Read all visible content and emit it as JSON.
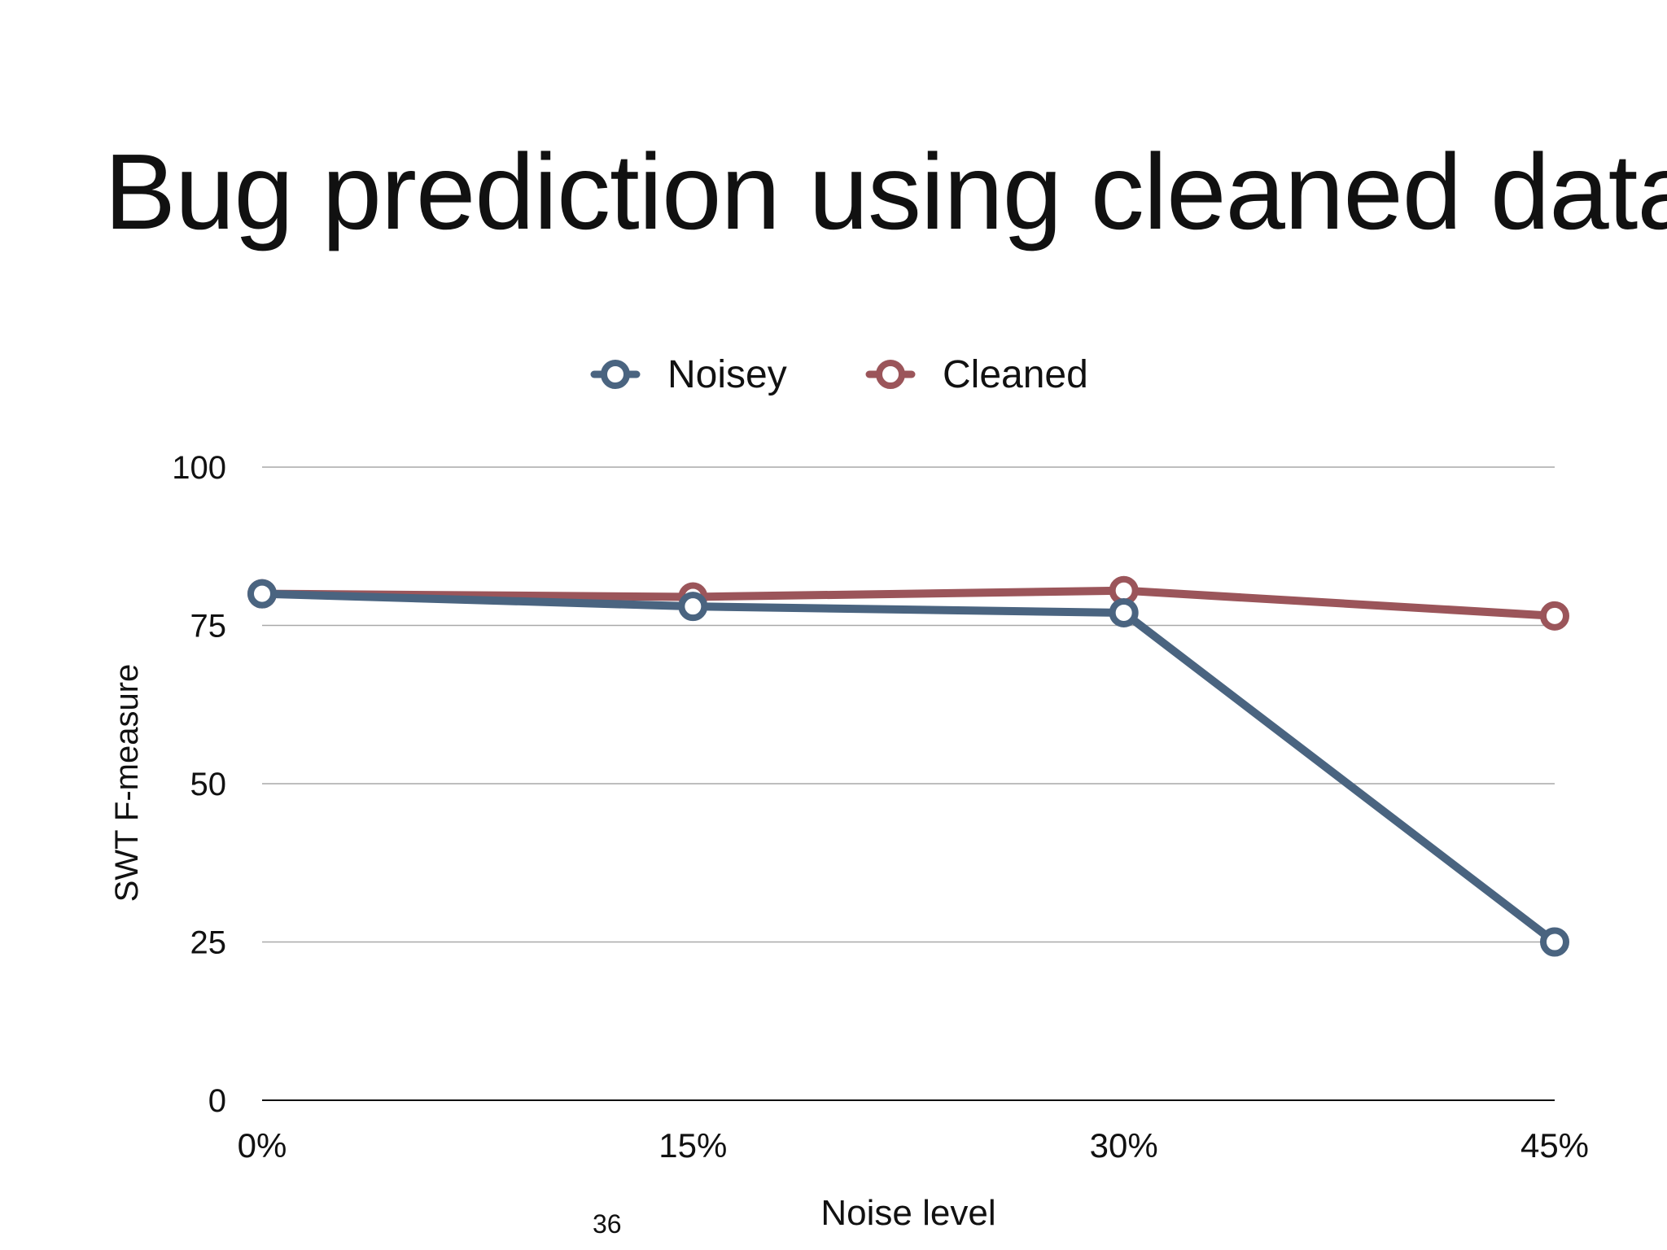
{
  "slide": {
    "title": "Bug prediction using cleaned data",
    "page_number": "36"
  },
  "chart_data": {
    "type": "line",
    "categories": [
      "0%",
      "15%",
      "30%",
      "45%"
    ],
    "series": [
      {
        "name": "Noisey",
        "values": [
          80,
          78,
          77,
          25
        ],
        "color": "#4a6480"
      },
      {
        "name": "Cleaned",
        "values": [
          80,
          79.5,
          80.5,
          76.5
        ],
        "color": "#9b555a"
      }
    ],
    "xlabel": "Noise level",
    "ylabel": "SWT F-measure",
    "ylim": [
      0,
      100
    ],
    "yticks": [
      "0",
      "25",
      "50",
      "75",
      "100"
    ],
    "legend_position": "top-center",
    "grid": true
  }
}
